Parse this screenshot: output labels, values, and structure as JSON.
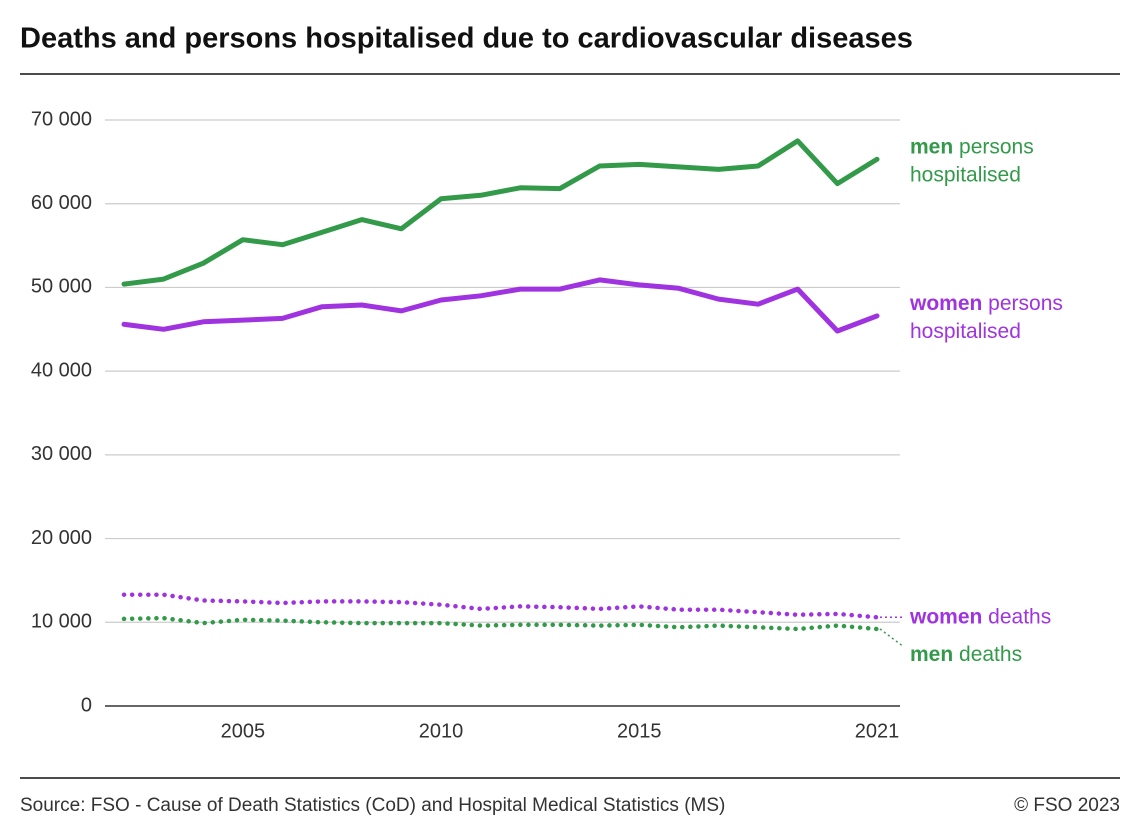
{
  "chart_data": {
    "type": "line",
    "title": "Deaths and persons hospitalised due to cardiovascular diseases",
    "source": "Source: FSO - Cause of Death Statistics (CoD) and Hospital Medical Statistics (MS)",
    "credit": "© FSO 2023",
    "x": [
      2002,
      2003,
      2004,
      2005,
      2006,
      2007,
      2008,
      2009,
      2010,
      2011,
      2012,
      2013,
      2014,
      2015,
      2016,
      2017,
      2018,
      2019,
      2020,
      2021
    ],
    "xlim": [
      2002,
      2021
    ],
    "xticks": [
      2005,
      2010,
      2015,
      2021
    ],
    "ylim": [
      0,
      70000
    ],
    "yticks": [
      0,
      {
        "value": 10000,
        "label": "10 000"
      },
      {
        "value": 20000,
        "label": "20 000"
      },
      {
        "value": 30000,
        "label": "30 000"
      },
      {
        "value": 40000,
        "label": "40 000"
      },
      {
        "value": 50000,
        "label": "50 000"
      },
      {
        "value": 60000,
        "label": "60 000"
      },
      {
        "value": 70000,
        "label": "70 000"
      }
    ],
    "grid": true,
    "series": [
      {
        "name": "men persons hospitalised",
        "color": "#339a4a",
        "style": "solid",
        "values": [
          50400,
          51000,
          52900,
          55700,
          55100,
          56600,
          58100,
          57000,
          60600,
          61000,
          61900,
          61800,
          64500,
          64700,
          64400,
          64100,
          64500,
          67500,
          62400,
          65300
        ]
      },
      {
        "name": "women persons hospitalised",
        "color": "#a033e0",
        "style": "solid",
        "values": [
          45600,
          45000,
          45900,
          46100,
          46300,
          47700,
          47900,
          47200,
          48500,
          49000,
          49800,
          49800,
          50900,
          50300,
          49900,
          48600,
          48000,
          49800,
          44800,
          46600
        ]
      },
      {
        "name": "women deaths",
        "color": "#a033e0",
        "style": "dotted",
        "values": [
          13300,
          13300,
          12600,
          12500,
          12300,
          12500,
          12500,
          12400,
          12100,
          11600,
          11900,
          11800,
          11600,
          11900,
          11500,
          11500,
          11200,
          10900,
          11000,
          10600
        ]
      },
      {
        "name": "men deaths",
        "color": "#339a4a",
        "style": "dotted",
        "values": [
          10400,
          10500,
          9900,
          10300,
          10200,
          10000,
          9900,
          9900,
          9900,
          9600,
          9700,
          9700,
          9600,
          9700,
          9400,
          9600,
          9400,
          9200,
          9600,
          9200
        ]
      }
    ]
  }
}
